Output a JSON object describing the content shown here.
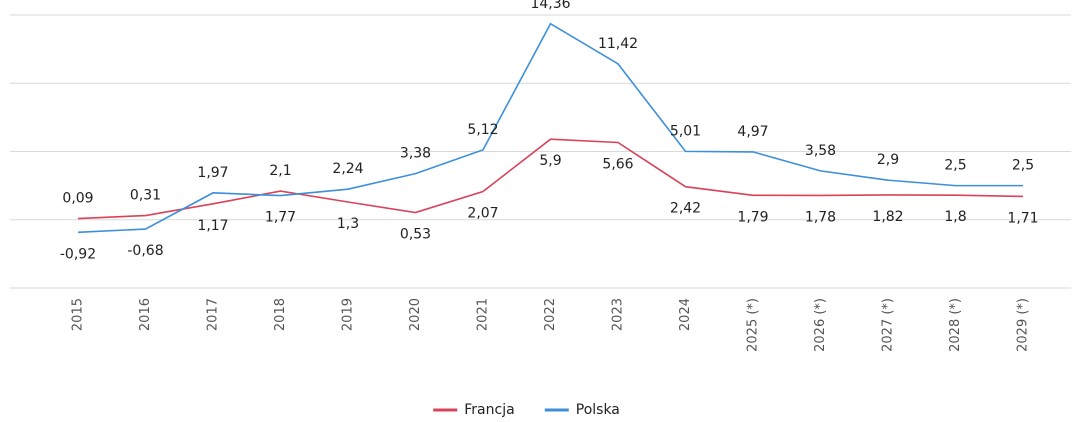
{
  "chart_data": {
    "type": "line",
    "categories": [
      "2015",
      "2016",
      "2017",
      "2018",
      "2019",
      "2020",
      "2021",
      "2022",
      "2023",
      "2024",
      "2025 (*)",
      "2026 (*)",
      "2027 (*)",
      "2028 (*)",
      "2029 (*)"
    ],
    "series": [
      {
        "name": "Francja",
        "color": "#d9435a",
        "values": [
          0.09,
          0.31,
          1.17,
          2.1,
          1.3,
          0.53,
          2.07,
          5.9,
          5.66,
          2.42,
          1.79,
          1.78,
          1.82,
          1.8,
          1.71
        ],
        "value_labels": [
          "0,09",
          "0,31",
          "1,17",
          "2,1",
          "1,3",
          "0,53",
          "2,07",
          "5,9",
          "5,66",
          "2,42",
          "1,79",
          "1,78",
          "1,82",
          "1,8",
          "1,71"
        ]
      },
      {
        "name": "Polska",
        "color": "#3c8fdb",
        "values": [
          -0.92,
          -0.68,
          1.97,
          1.77,
          2.24,
          3.38,
          5.12,
          14.36,
          11.42,
          5.01,
          4.97,
          3.58,
          2.9,
          2.5,
          2.5
        ],
        "value_labels": [
          "-0,92",
          "-0,68",
          "1,97",
          "1,77",
          "2,24",
          "3,38",
          "5,12",
          "14,36",
          "11,42",
          "5,01",
          "4,97",
          "3,58",
          "2,9",
          "2,5",
          "2,5"
        ]
      }
    ],
    "ylim": [
      -5,
      15
    ],
    "yticks": [
      -5,
      0,
      5,
      10,
      15
    ],
    "grid": true,
    "legend": "bottom"
  }
}
